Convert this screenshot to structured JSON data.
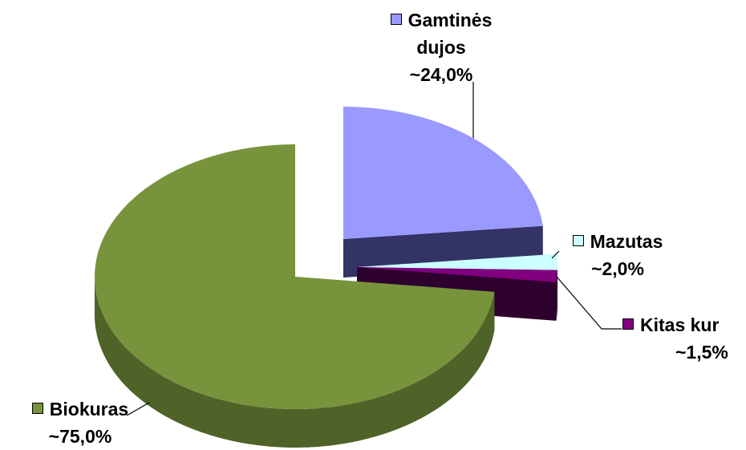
{
  "chart_data": {
    "type": "pie",
    "categories": [
      "Gamtinės dujos",
      "Mazutas",
      "Kitas kur",
      "Biokuras"
    ],
    "values": [
      24.0,
      2.0,
      1.5,
      75.0
    ],
    "value_labels": [
      "~24,0%",
      "~2,0%",
      "~1,5%",
      "~75,0%"
    ],
    "colors": [
      "#9999ff",
      "#ccffff",
      "#800080",
      "#77933c"
    ],
    "side_colors": [
      "#333366",
      "#5f9ea0",
      "#2e002e",
      "#4f6228"
    ],
    "three_d": true
  }
}
